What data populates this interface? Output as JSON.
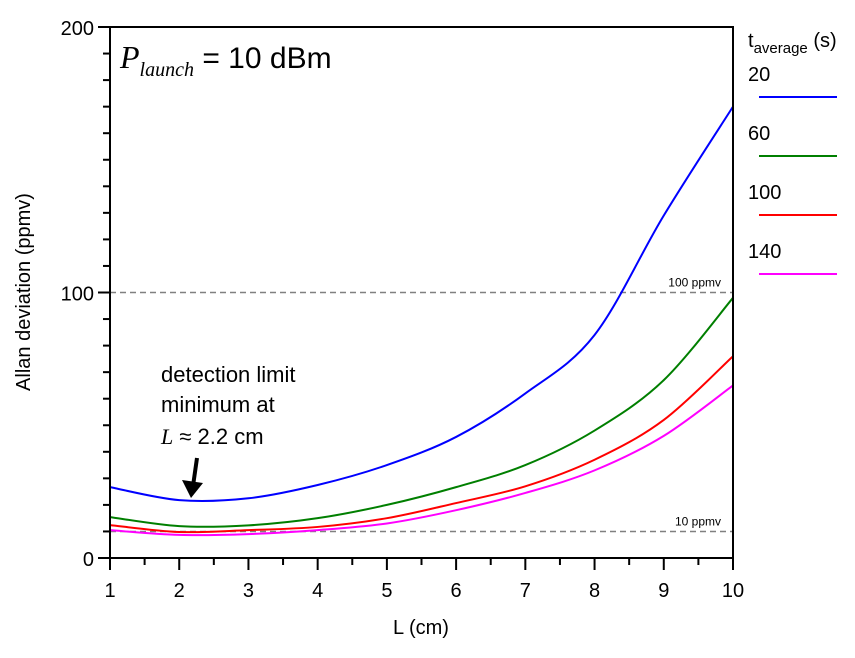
{
  "chart_data": {
    "type": "line",
    "xlabel": "L (cm)",
    "ylabel": "Allan deviation (ppmv)",
    "xlim": [
      1,
      10
    ],
    "ylim": [
      0,
      200
    ],
    "xticks": [
      "1",
      "2",
      "3",
      "4",
      "5",
      "6",
      "7",
      "8",
      "9",
      "10"
    ],
    "yticks": [
      "0",
      "100",
      "200"
    ],
    "grid": false,
    "legend_title_main": "t",
    "legend_title_sub": "average",
    "legend_title_unit": " (s)",
    "legend_position": "right",
    "x": [
      1,
      2,
      3,
      4,
      5,
      6,
      7,
      8,
      9,
      10
    ],
    "series": [
      {
        "name": "20",
        "color": "#0000ff",
        "values": [
          26.7,
          21.8,
          22.5,
          27.5,
          35,
          45.6,
          62,
          84,
          129,
          170
        ]
      },
      {
        "name": "60",
        "color": "#007f00",
        "values": [
          15.4,
          12,
          12.3,
          15,
          20,
          26.7,
          35,
          48,
          67,
          98
        ]
      },
      {
        "name": "100",
        "color": "#ff0000",
        "values": [
          12.4,
          9.8,
          10.5,
          11.7,
          15,
          20.7,
          27,
          37,
          52,
          76
        ]
      },
      {
        "name": "140",
        "color": "#ff00ff",
        "values": [
          10.5,
          8.7,
          9,
          10.5,
          13,
          18,
          24.5,
          33,
          46,
          65
        ]
      }
    ],
    "reference_lines": [
      {
        "value": 100,
        "label": "100 ppmv",
        "color": "#808080"
      },
      {
        "value": 10,
        "label": "10 ppmv",
        "color": "#808080"
      }
    ],
    "annotations": {
      "power_symbol": "P",
      "power_sub": "launch",
      "power_value": " = 10 dBm",
      "detection_line1": "detection limit",
      "detection_line2": "minimum at",
      "detection_symbol": "L",
      "detection_value": " ≈ 2.2 cm",
      "arrow_x": 2.2
    }
  }
}
